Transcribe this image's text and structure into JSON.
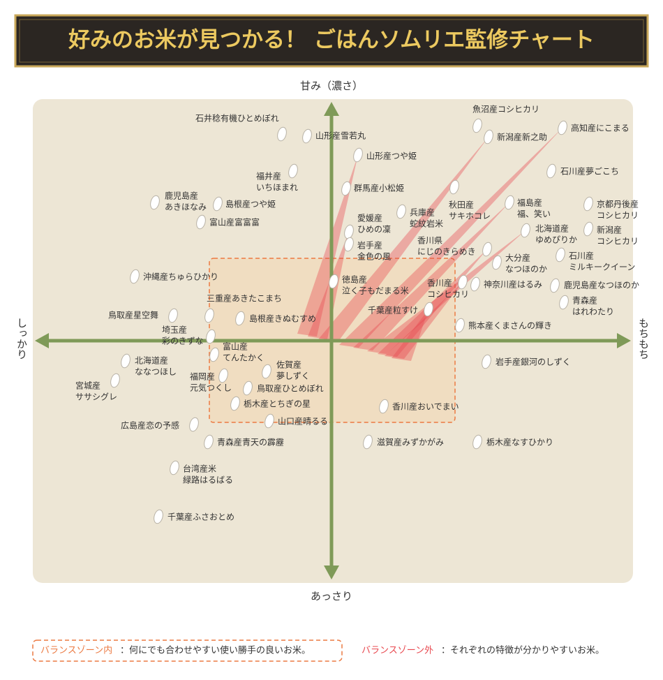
{
  "title": "好みのお米が見つかる！ ごはんソムリエ監修チャート",
  "axes": {
    "top": "甘み（濃さ）",
    "bottom": "あっさり",
    "left": "しっかり",
    "right": "もちもち"
  },
  "nodes": [
    {
      "label": [
        "石井稔有機ひとめぼれ"
      ]
    },
    {
      "label": [
        "山形産雪若丸"
      ]
    },
    {
      "label": [
        "山形産つや姫"
      ]
    },
    {
      "label": [
        "福井産",
        "いちほまれ"
      ]
    },
    {
      "label": [
        "群馬産小松姫"
      ]
    },
    {
      "label": [
        "鹿児島産",
        "あきほなみ"
      ]
    },
    {
      "label": [
        "島根産つや姫"
      ]
    },
    {
      "label": [
        "富山産富富富"
      ]
    },
    {
      "label": [
        "愛媛産",
        "ひめの凜"
      ]
    },
    {
      "label": [
        "兵庫産",
        "蛇紋岩米"
      ]
    },
    {
      "label": [
        "秋田産",
        "サキホコレ"
      ]
    },
    {
      "label": [
        "福島産",
        "福、笑い"
      ]
    },
    {
      "label": [
        "京都丹後産",
        "コシヒカリ"
      ]
    },
    {
      "label": [
        "岩手産",
        "金色の風"
      ]
    },
    {
      "label": [
        "香川県",
        "にじのきらめき"
      ]
    },
    {
      "label": [
        "北海道産",
        "ゆめぴりか"
      ]
    },
    {
      "label": [
        "新潟産",
        "コシヒカリ"
      ]
    },
    {
      "label": [
        "石川産",
        "ミルキークイーン"
      ]
    },
    {
      "label": [
        "大分産",
        "なつほのか"
      ]
    },
    {
      "label": [
        "沖縄産ちゅらひかり"
      ]
    },
    {
      "label": [
        "徳島産",
        "泣く子もだまる米"
      ]
    },
    {
      "label": [
        "香川産",
        "コシヒカリ"
      ]
    },
    {
      "label": [
        "神奈川産はるみ"
      ]
    },
    {
      "label": [
        "鹿児島産なつほのか"
      ]
    },
    {
      "label": [
        "青森産",
        "はれわたり"
      ]
    },
    {
      "label": [
        "三重産あきたこまち"
      ]
    },
    {
      "label": [
        "千葉産粒すけ"
      ]
    },
    {
      "label": [
        "鳥取産星空舞"
      ]
    },
    {
      "label": [
        "島根産きぬむすめ"
      ]
    },
    {
      "label": [
        "熊本産くまさんの輝き"
      ]
    },
    {
      "label": [
        "埼玉産",
        "彩のきずな"
      ]
    },
    {
      "label": [
        "富山産",
        "てんたかく"
      ]
    },
    {
      "label": [
        "北海道産",
        "ななつほし"
      ]
    },
    {
      "label": [
        "佐賀産",
        "夢しずく"
      ]
    },
    {
      "label": [
        "岩手産銀河のしずく"
      ]
    },
    {
      "label": [
        "宮城産",
        "ササシグレ"
      ]
    },
    {
      "label": [
        "福岡産",
        "元気つくし"
      ]
    },
    {
      "label": [
        "鳥取産ひとめぼれ"
      ]
    },
    {
      "label": [
        "栃木産とちぎの星"
      ]
    },
    {
      "label": [
        "香川産おいでまい"
      ]
    },
    {
      "label": [
        "山口産晴るる"
      ]
    },
    {
      "label": [
        "広島産恋の予感"
      ]
    },
    {
      "label": [
        "青森産青天の霹靂"
      ]
    },
    {
      "label": [
        "滋賀産みずかがみ"
      ]
    },
    {
      "label": [
        "栃木産なすひかり"
      ]
    },
    {
      "label": [
        "台湾産米",
        "緑路はるばる"
      ]
    },
    {
      "label": [
        "千葉産ふさおとめ"
      ]
    },
    {
      "label": [
        "魚沼産コシヒカリ"
      ]
    },
    {
      "label": [
        "新潟産新之助"
      ]
    },
    {
      "label": [
        "高知産にこまる"
      ]
    },
    {
      "label": [
        "石川産夢ごこち"
      ]
    }
  ],
  "legend": [
    {
      "term": "バランスゾーン内",
      "desc": "：何にでも合わせやすい使い勝手の良いお米。"
    },
    {
      "term": "バランスゾーン外",
      "desc": "：それぞれの特徴が分かりやすいお米。"
    }
  ]
}
